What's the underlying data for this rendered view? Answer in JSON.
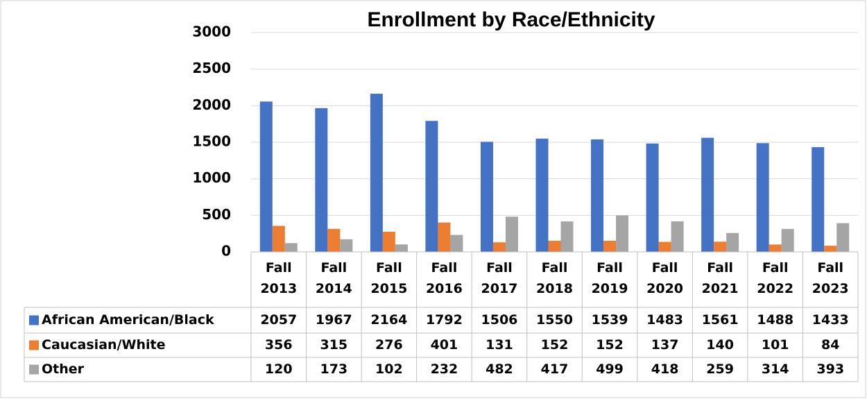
{
  "chart_data": {
    "type": "bar",
    "title": "Enrollment by Race/Ethnicity",
    "categories": [
      "Fall 2013",
      "Fall 2014",
      "Fall 2015",
      "Fall 2016",
      "Fall 2017",
      "Fall 2018",
      "Fall 2019",
      "Fall 2020",
      "Fall 2021",
      "Fall 2022",
      "Fall 2023"
    ],
    "series": [
      {
        "name": "African American/Black",
        "color": "#4472c4",
        "values": [
          2057,
          1967,
          2164,
          1792,
          1506,
          1550,
          1539,
          1483,
          1561,
          1488,
          1433
        ]
      },
      {
        "name": "Caucasian/White",
        "color": "#ed7d31",
        "values": [
          356,
          315,
          276,
          401,
          131,
          152,
          152,
          137,
          140,
          101,
          84
        ]
      },
      {
        "name": "Other",
        "color": "#a5a5a5",
        "values": [
          120,
          173,
          102,
          232,
          482,
          417,
          499,
          418,
          259,
          314,
          393
        ]
      }
    ],
    "ylim": [
      0,
      3000
    ],
    "yticks": [
      0,
      500,
      1000,
      1500,
      2000,
      2500,
      3000
    ],
    "grid": true,
    "data_table": true
  }
}
